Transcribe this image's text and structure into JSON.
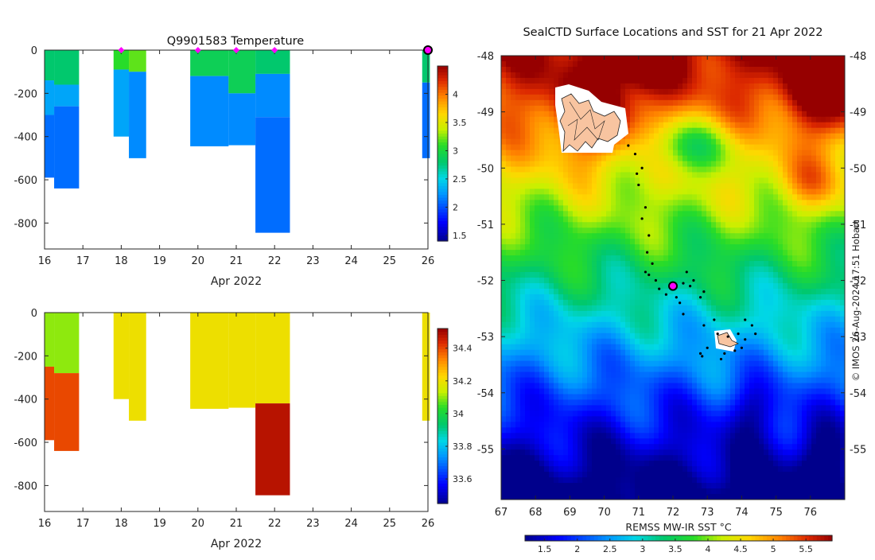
{
  "chart_data": [
    {
      "type": "heatmap",
      "panel": "temperature-profile",
      "title": "Q9901583  Temperature",
      "xlabel": "Apr 2022",
      "ylabel": "",
      "xlim": [
        16,
        26
      ],
      "ylim": [
        -920,
        0
      ],
      "x_ticks": [
        16,
        17,
        18,
        19,
        20,
        21,
        22,
        23,
        24,
        25,
        26
      ],
      "y_ticks": [
        0,
        -200,
        -400,
        -600,
        -800
      ],
      "colorbar_range": [
        1.4,
        4.5
      ],
      "colorbar_ticks": [
        1.5,
        2,
        2.5,
        3,
        3.5,
        4
      ],
      "colorbar_labels": [
        "1.5",
        "2",
        "2.5",
        "3",
        "3.5",
        "4"
      ],
      "surface_markers_x": [
        18,
        20,
        21,
        22
      ],
      "current_marker_x": 26,
      "profiles": [
        {
          "x0": 16.0,
          "x1": 16.25,
          "segments": [
            {
              "top": 0,
              "bottom": -140,
              "value": 2.8
            },
            {
              "top": -140,
              "bottom": -300,
              "value": 2.3
            },
            {
              "top": -300,
              "bottom": -590,
              "value": 2.1
            }
          ]
        },
        {
          "x0": 16.25,
          "x1": 16.9,
          "segments": [
            {
              "top": 0,
              "bottom": -160,
              "value": 2.8
            },
            {
              "top": -160,
              "bottom": -260,
              "value": 2.3
            },
            {
              "top": -260,
              "bottom": -640,
              "value": 2.1
            }
          ]
        },
        {
          "x0": 17.8,
          "x1": 18.2,
          "segments": [
            {
              "top": 0,
              "bottom": -90,
              "value": 3.1
            },
            {
              "top": -90,
              "bottom": -400,
              "value": 2.3
            }
          ]
        },
        {
          "x0": 18.2,
          "x1": 18.65,
          "segments": [
            {
              "top": 0,
              "bottom": -100,
              "value": 3.2
            },
            {
              "top": -100,
              "bottom": -500,
              "value": 2.2
            }
          ]
        },
        {
          "x0": 19.8,
          "x1": 20.8,
          "segments": [
            {
              "top": 0,
              "bottom": -120,
              "value": 2.9
            },
            {
              "top": -120,
              "bottom": -445,
              "value": 2.2
            }
          ]
        },
        {
          "x0": 20.8,
          "x1": 21.5,
          "segments": [
            {
              "top": 0,
              "bottom": -200,
              "value": 2.9
            },
            {
              "top": -200,
              "bottom": -440,
              "value": 2.2
            }
          ]
        },
        {
          "x0": 21.5,
          "x1": 22.4,
          "segments": [
            {
              "top": 0,
              "bottom": -110,
              "value": 2.8
            },
            {
              "top": -110,
              "bottom": -310,
              "value": 2.2
            },
            {
              "top": -310,
              "bottom": -845,
              "value": 2.1
            }
          ]
        },
        {
          "x0": 25.85,
          "x1": 26.05,
          "segments": [
            {
              "top": 0,
              "bottom": -150,
              "value": 2.8
            },
            {
              "top": -150,
              "bottom": -500,
              "value": 2.1
            }
          ]
        }
      ]
    },
    {
      "type": "heatmap",
      "panel": "salinity-profile",
      "title": "",
      "xlabel": "Apr 2022",
      "ylabel": "",
      "xlim": [
        16,
        26
      ],
      "ylim": [
        -920,
        0
      ],
      "x_ticks": [
        16,
        17,
        18,
        19,
        20,
        21,
        22,
        23,
        24,
        25,
        26
      ],
      "y_ticks": [
        0,
        -200,
        -400,
        -600,
        -800
      ],
      "colorbar_range": [
        33.45,
        34.52
      ],
      "colorbar_ticks": [
        33.6,
        33.8,
        34,
        34.2,
        34.4
      ],
      "colorbar_labels": [
        "33.6",
        "33.8",
        "34",
        "34.2",
        "34.4"
      ],
      "profiles": [
        {
          "x0": 16.0,
          "x1": 16.25,
          "segments": [
            {
              "top": 0,
              "bottom": -250,
              "value": 34.1
            },
            {
              "top": -250,
              "bottom": -590,
              "value": 34.4
            }
          ]
        },
        {
          "x0": 16.25,
          "x1": 16.9,
          "segments": [
            {
              "top": 0,
              "bottom": -280,
              "value": 34.1
            },
            {
              "top": -280,
              "bottom": -640,
              "value": 34.4
            }
          ]
        },
        {
          "x0": 17.8,
          "x1": 18.2,
          "segments": [
            {
              "top": 0,
              "bottom": -400,
              "value": 34.2
            }
          ]
        },
        {
          "x0": 18.2,
          "x1": 18.65,
          "segments": [
            {
              "top": 0,
              "bottom": -500,
              "value": 34.2
            }
          ]
        },
        {
          "x0": 19.8,
          "x1": 20.8,
          "segments": [
            {
              "top": 0,
              "bottom": -445,
              "value": 34.2
            }
          ]
        },
        {
          "x0": 20.8,
          "x1": 21.5,
          "segments": [
            {
              "top": 0,
              "bottom": -440,
              "value": 34.2
            }
          ]
        },
        {
          "x0": 21.5,
          "x1": 22.4,
          "segments": [
            {
              "top": 0,
              "bottom": -420,
              "value": 34.2
            },
            {
              "top": -420,
              "bottom": -845,
              "value": 34.48
            }
          ]
        },
        {
          "x0": 25.85,
          "x1": 26.05,
          "segments": [
            {
              "top": 0,
              "bottom": -500,
              "value": 34.2
            }
          ]
        }
      ]
    },
    {
      "type": "heatmap",
      "panel": "sst-map",
      "title": "SealCTD Surface Locations and SST for 21 Apr 2022",
      "xlabel": "",
      "colorbar_label": "REMSS MW-IR SST °C",
      "xlim": [
        67,
        77
      ],
      "ylim": [
        -55.9,
        -48
      ],
      "x_ticks": [
        67,
        68,
        69,
        70,
        71,
        72,
        73,
        74,
        75,
        76
      ],
      "y_ticks": [
        -48,
        -49,
        -50,
        -51,
        -52,
        -53,
        -54,
        -55
      ],
      "colorbar_range": [
        1.2,
        5.9
      ],
      "colorbar_ticks": [
        1.5,
        2,
        2.5,
        3,
        3.5,
        4,
        4.5,
        5,
        5.5
      ],
      "colorbar_labels": [
        "1.5",
        "2",
        "2.5",
        "3",
        "3.5",
        "4",
        "4.5",
        "5",
        "5.5"
      ],
      "current_location": {
        "lon": 72.0,
        "lat": -52.1
      },
      "track_points": [
        [
          70.7,
          -49.6
        ],
        [
          70.9,
          -49.75
        ],
        [
          71.1,
          -50.0
        ],
        [
          70.95,
          -50.1
        ],
        [
          71.0,
          -50.3
        ],
        [
          71.2,
          -50.7
        ],
        [
          71.1,
          -50.9
        ],
        [
          71.3,
          -51.2
        ],
        [
          71.25,
          -51.5
        ],
        [
          71.4,
          -51.7
        ],
        [
          71.2,
          -51.85
        ],
        [
          71.3,
          -51.9
        ],
        [
          71.5,
          -52.0
        ],
        [
          71.6,
          -52.15
        ],
        [
          71.8,
          -52.25
        ],
        [
          72.1,
          -52.3
        ],
        [
          72.3,
          -52.05
        ],
        [
          72.5,
          -52.1
        ],
        [
          72.6,
          -52.0
        ],
        [
          72.9,
          -52.2
        ],
        [
          72.8,
          -52.3
        ],
        [
          72.4,
          -51.85
        ],
        [
          72.2,
          -52.4
        ],
        [
          72.3,
          -52.6
        ],
        [
          72.9,
          -52.8
        ],
        [
          73.2,
          -52.7
        ],
        [
          73.3,
          -52.95
        ],
        [
          73.6,
          -53.0
        ],
        [
          73.9,
          -52.95
        ],
        [
          74.1,
          -53.05
        ],
        [
          74.0,
          -53.2
        ],
        [
          73.8,
          -53.25
        ],
        [
          74.3,
          -52.8
        ],
        [
          74.4,
          -52.95
        ],
        [
          73.5,
          -53.3
        ],
        [
          73.0,
          -53.2
        ],
        [
          72.8,
          -53.3
        ],
        [
          73.4,
          -53.4
        ],
        [
          72.85,
          -53.35
        ],
        [
          74.1,
          -52.7
        ]
      ]
    }
  ],
  "credit": "© IMOS 26-Aug-2024 17:51 Hobart"
}
